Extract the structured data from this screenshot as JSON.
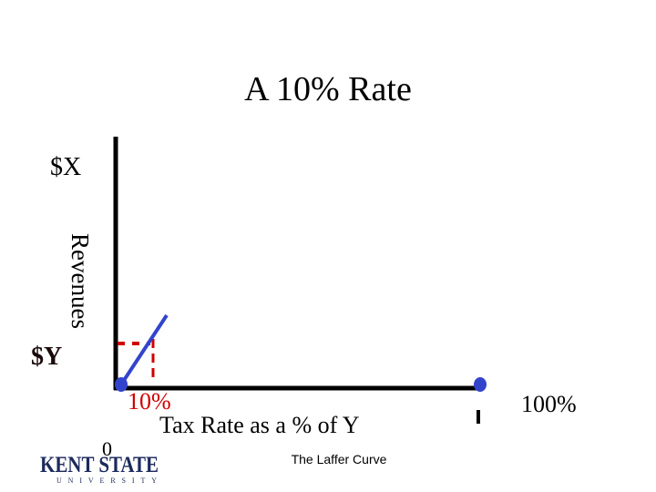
{
  "slide": {
    "title": "A 10% Rate",
    "y_axis": {
      "top_label": "$X",
      "title": "Revenues",
      "bottom_label": "$Y"
    },
    "x_axis": {
      "origin_label": "0",
      "rate_label": "10%",
      "title": "Tax Rate as a % of Y",
      "end_label": "100%"
    },
    "footer": "The Laffer Curve",
    "logo": {
      "name": "KENT STATE",
      "subtitle": "UNIVERSITY"
    }
  }
}
